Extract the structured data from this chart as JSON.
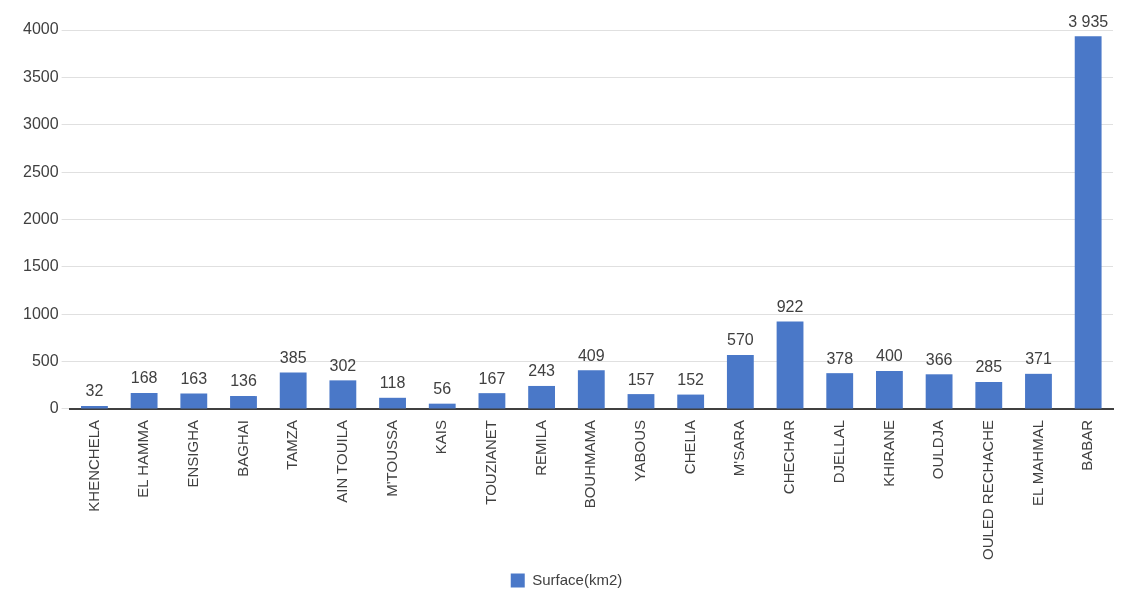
{
  "chart_data": {
    "type": "bar",
    "categories": [
      "KHENCHELA",
      "EL HAMMA",
      "ENSIGHA",
      "BAGHAI",
      "TAMZA",
      "AIN TOUILA",
      "M'TOUSSA",
      "KAIS",
      "TOUZIANET",
      "REMILA",
      "BOUHMAMA",
      "YABOUS",
      "CHELIA",
      "M'SARA",
      "CHECHAR",
      "DJELLAL",
      "KHIRANE",
      "OULDJA",
      "OULED RECHACHE",
      "EL MAHMAL",
      "BABAR"
    ],
    "series": [
      {
        "name": "Surface(km2)",
        "color": "#4a78c8",
        "values": [
          32,
          168,
          163,
          136,
          385,
          302,
          118,
          56,
          167,
          243,
          409,
          157,
          152,
          570,
          922,
          378,
          400,
          366,
          285,
          371,
          3935
        ],
        "value_labels": [
          "32",
          "168",
          "163",
          "136",
          "385",
          "302",
          "118",
          "56",
          "167",
          "243",
          "409",
          "157",
          "152",
          "570",
          "922",
          "378",
          "400",
          "366",
          "285",
          "371",
          "3 935"
        ]
      }
    ],
    "ylim": [
      0,
      4000
    ],
    "yticks": [
      0,
      500,
      1000,
      1500,
      2000,
      2500,
      3000,
      3500,
      4000
    ],
    "grid": "y",
    "legend": "bottom"
  }
}
